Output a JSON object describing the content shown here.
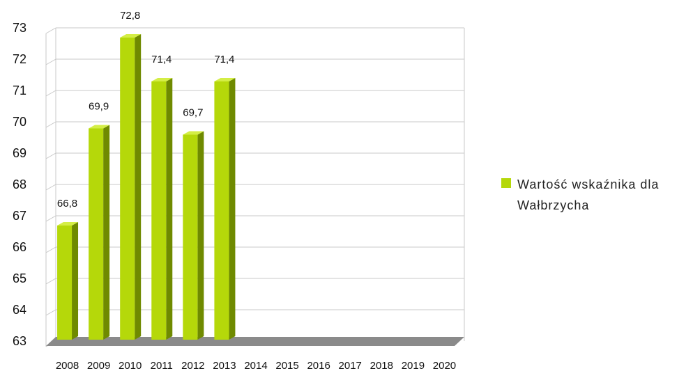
{
  "chart_data": {
    "type": "bar",
    "categories": [
      "2008",
      "2009",
      "2010",
      "2011",
      "2012",
      "2013",
      "2014",
      "2015",
      "2016",
      "2017",
      "2018",
      "2019",
      "2020"
    ],
    "series": [
      {
        "name": "Wartość wskaźnika dla Wałbrzycha",
        "values": [
          66.8,
          69.9,
          72.8,
          71.4,
          69.7,
          71.4,
          null,
          null,
          null,
          null,
          null,
          null,
          null
        ],
        "labels": [
          "66,8",
          "69,9",
          "72,8",
          "71,4",
          "69,7",
          "71,4"
        ]
      }
    ],
    "ylim": [
      63,
      73
    ],
    "yticks": [
      "63",
      "64",
      "65",
      "66",
      "67",
      "68",
      "69",
      "70",
      "71",
      "72",
      "73"
    ],
    "legend": {
      "lines": [
        "Wartość wskaźnika dla",
        "Wałbrzycha"
      ],
      "placement": "right"
    },
    "grid": true,
    "colors": {
      "bar_front": "#b5d80a",
      "bar_side": "#6f8a00",
      "bar_top": "#d4ee46",
      "floor": "#8a8a8a",
      "grid": "#c8c8c8"
    },
    "title": "",
    "xlabel": "",
    "ylabel": ""
  }
}
